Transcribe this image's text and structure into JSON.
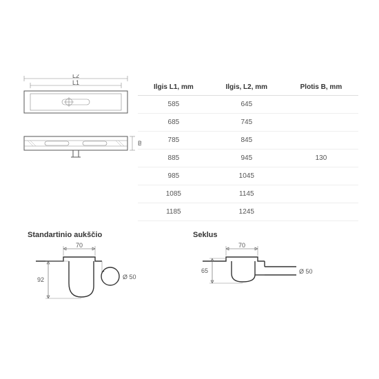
{
  "table": {
    "headers": [
      "Ilgis L1, mm",
      "Ilgis, L2, mm",
      "Plotis B, mm"
    ],
    "rows": [
      [
        "585",
        "645",
        ""
      ],
      [
        "685",
        "745",
        ""
      ],
      [
        "785",
        "845",
        ""
      ],
      [
        "885",
        "945",
        "130"
      ],
      [
        "985",
        "1045",
        ""
      ],
      [
        "1085",
        "1145",
        ""
      ],
      [
        "1185",
        "1245",
        ""
      ]
    ],
    "border_color": "#eee",
    "header_border_color": "#ddd",
    "text_color": "#555",
    "fontsize": 10
  },
  "drawings": {
    "top": {
      "l2_label": "L2",
      "l1_label": "L1",
      "stroke": "#555"
    },
    "side": {
      "b_label": "B"
    },
    "std": {
      "title": "Standartinio aukščio",
      "dim_w": "70",
      "dim_h": "92",
      "dia": "Ø 50"
    },
    "seklus": {
      "title": "Seklus",
      "dim_w": "70",
      "dim_h": "65",
      "dia": "Ø 50"
    }
  },
  "colors": {
    "background": "#ffffff",
    "line_thin": "#888888",
    "line_mid": "#555555",
    "line_thick": "#333333",
    "text": "#555555"
  }
}
